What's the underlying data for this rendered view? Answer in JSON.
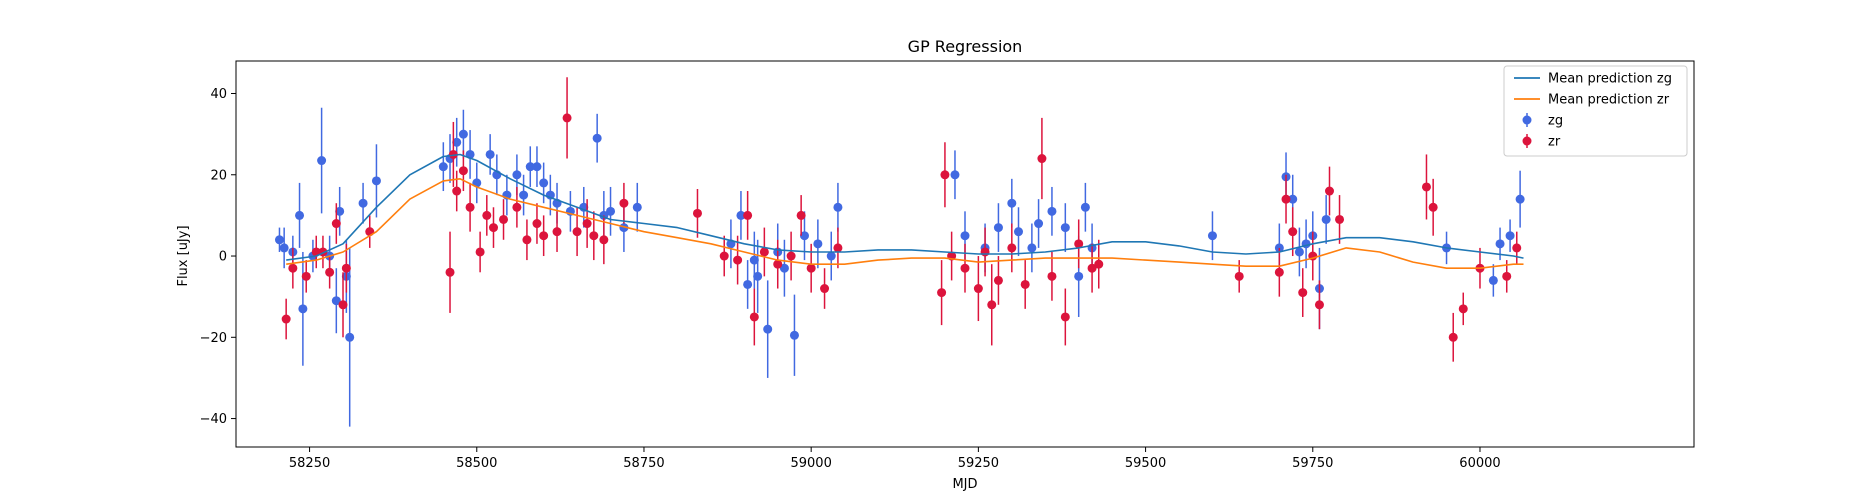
{
  "chart_data": {
    "type": "scatter",
    "title": "GP Regression",
    "xlabel": "MJD",
    "ylabel": "Flux [uJy]",
    "xlim": [
      58140,
      60320
    ],
    "ylim": [
      -47,
      48
    ],
    "xticks": [
      58250,
      58500,
      58750,
      59000,
      59250,
      59500,
      59750,
      60000
    ],
    "yticks": [
      -40,
      -20,
      0,
      20,
      40
    ],
    "legend": {
      "placement": "top-right",
      "entries": [
        "Mean prediction zg",
        "Mean prediction zr",
        "zg",
        "zr"
      ]
    },
    "colors": {
      "line_zg": "#1f77b4",
      "line_zr": "#ff7f0e",
      "points_zg": "#4169e1",
      "points_zr": "#dc143c"
    },
    "series": [
      {
        "name": "Mean prediction zg",
        "kind": "line",
        "x": [
          58215,
          58260,
          58300,
          58350,
          58400,
          58450,
          58475,
          58500,
          58550,
          58600,
          58650,
          58700,
          58750,
          58800,
          58850,
          58900,
          58950,
          59000,
          59050,
          59100,
          59150,
          59200,
          59250,
          59300,
          59350,
          59400,
          59450,
          59500,
          59550,
          59600,
          59650,
          59700,
          59750,
          59800,
          59850,
          59900,
          59950,
          60000,
          60050,
          60065
        ],
        "y": [
          -1,
          0,
          3,
          12,
          20,
          24.5,
          25,
          23.5,
          19,
          15,
          12,
          9,
          8,
          7,
          5,
          3,
          1.5,
          1,
          1,
          1.5,
          1.5,
          1,
          0.5,
          0.5,
          1,
          2,
          3.5,
          3.5,
          2.5,
          1,
          0.5,
          1,
          3,
          4.5,
          4.5,
          3.5,
          2,
          1,
          0,
          -0.5
        ]
      },
      {
        "name": "Mean prediction zr",
        "kind": "line",
        "x": [
          58215,
          58260,
          58300,
          58350,
          58400,
          58450,
          58475,
          58500,
          58550,
          58600,
          58650,
          58700,
          58750,
          58800,
          58850,
          58900,
          58950,
          59000,
          59050,
          59100,
          59150,
          59200,
          59250,
          59300,
          59350,
          59400,
          59450,
          59500,
          59550,
          59600,
          59650,
          59700,
          59750,
          59800,
          59850,
          59900,
          59950,
          60000,
          60050,
          60065
        ],
        "y": [
          -2,
          -1,
          1,
          6,
          14,
          18.5,
          19,
          17,
          14,
          12,
          10,
          8,
          6,
          4.5,
          3,
          1,
          -1,
          -2,
          -2,
          -1,
          -0.5,
          -0.5,
          -1.5,
          -1,
          -0.5,
          -0.5,
          -0.5,
          -1,
          -1.5,
          -2,
          -2.5,
          -2.5,
          -0.5,
          2,
          1,
          -1.5,
          -3,
          -3,
          -2,
          -2
        ]
      },
      {
        "name": "zg",
        "kind": "errorbar",
        "x": [
          58205,
          58212,
          58225,
          58235,
          58240,
          58255,
          58268,
          58280,
          58290,
          58295,
          58305,
          58310,
          58330,
          58350,
          58450,
          58460,
          58470,
          58480,
          58490,
          58500,
          58520,
          58530,
          58545,
          58560,
          58570,
          58580,
          58590,
          58600,
          58610,
          58620,
          58640,
          58660,
          58680,
          58690,
          58700,
          58720,
          58740,
          58880,
          58895,
          58905,
          58915,
          58920,
          58935,
          58950,
          58960,
          58975,
          58990,
          59010,
          59030,
          59040,
          59215,
          59230,
          59260,
          59280,
          59300,
          59310,
          59330,
          59340,
          59360,
          59380,
          59400,
          59410,
          59420,
          59600,
          59700,
          59710,
          59720,
          59730,
          59740,
          59750,
          59760,
          59770,
          59950,
          60020,
          60030,
          60045,
          60060
        ],
        "y": [
          4,
          2,
          1,
          10,
          -13,
          0,
          23.5,
          0,
          -11,
          11,
          -5,
          -20,
          13,
          18.5,
          22,
          24,
          28,
          30,
          25,
          18,
          25,
          20,
          15,
          20,
          15,
          22,
          22,
          18,
          15,
          13,
          11,
          12,
          29,
          10,
          11,
          7,
          12,
          3,
          10,
          -7,
          -1,
          -5,
          -18,
          1,
          -3,
          -19.5,
          5,
          3,
          0,
          12,
          20,
          5,
          2,
          7,
          13,
          6,
          2,
          8,
          11,
          7,
          -5,
          12,
          2,
          5,
          2,
          19.5,
          14,
          1,
          3,
          5,
          -8,
          9,
          2,
          -6,
          3,
          5,
          14
        ],
        "err": [
          3,
          5,
          4,
          8,
          14,
          4,
          13,
          5,
          8,
          6,
          9,
          22,
          5,
          9,
          6,
          6,
          6,
          6,
          6,
          5,
          5,
          5,
          5,
          5,
          5,
          5,
          5,
          5,
          5,
          5,
          5,
          5,
          6,
          6,
          6,
          6,
          6,
          6,
          6,
          6,
          7,
          9,
          12,
          7,
          7,
          10,
          6,
          6,
          6,
          6,
          6,
          6,
          6,
          6,
          6,
          6,
          6,
          6,
          6,
          6,
          10,
          6,
          6,
          6,
          6,
          6,
          6,
          6,
          6,
          6,
          10,
          6,
          4,
          4,
          4,
          4,
          7
        ]
      },
      {
        "name": "zr",
        "kind": "errorbar",
        "x": [
          58215,
          58225,
          58245,
          58260,
          58270,
          58280,
          58290,
          58300,
          58305,
          58340,
          58460,
          58465,
          58470,
          58480,
          58490,
          58505,
          58515,
          58525,
          58540,
          58560,
          58575,
          58590,
          58600,
          58620,
          58635,
          58650,
          58665,
          58675,
          58690,
          58720,
          58830,
          58870,
          58890,
          58905,
          58915,
          58930,
          58950,
          58970,
          58985,
          59000,
          59020,
          59040,
          59195,
          59200,
          59210,
          59230,
          59250,
          59260,
          59270,
          59280,
          59300,
          59320,
          59345,
          59360,
          59380,
          59400,
          59420,
          59430,
          59640,
          59700,
          59710,
          59720,
          59735,
          59750,
          59760,
          59775,
          59790,
          59920,
          59930,
          59960,
          59975,
          60000,
          60040,
          60055
        ],
        "y": [
          -15.5,
          -3,
          -5,
          1,
          1,
          -4,
          8,
          -12,
          -3,
          6,
          -4,
          25,
          16,
          21,
          12,
          1,
          10,
          7,
          9,
          12,
          4,
          8,
          5,
          6,
          34,
          6,
          8,
          5,
          4,
          13,
          10.5,
          0,
          -1,
          10,
          -15,
          1,
          -2,
          0,
          10,
          -3,
          -8,
          2,
          -9,
          20,
          0,
          -3,
          -8,
          1,
          -12,
          -6,
          2,
          -7,
          24,
          -5,
          -15,
          3,
          -3,
          -2,
          -5,
          -4,
          14,
          6,
          -9,
          0,
          -12,
          16,
          9,
          17,
          12,
          -20,
          -13,
          -3,
          -5,
          2
        ],
        "err": [
          5,
          5,
          4,
          4,
          4,
          4,
          5,
          8,
          6,
          4,
          10,
          8,
          5,
          5,
          6,
          5,
          5,
          5,
          5,
          5,
          5,
          5,
          5,
          5,
          10,
          6,
          6,
          6,
          6,
          5,
          6,
          5,
          6,
          6,
          7,
          6,
          6,
          6,
          5,
          6,
          5,
          5,
          8,
          8,
          6,
          6,
          8,
          6,
          10,
          6,
          6,
          6,
          10,
          6,
          7,
          6,
          6,
          6,
          4,
          6,
          6,
          6,
          6,
          6,
          6,
          6,
          6,
          8,
          7,
          6,
          4,
          5,
          4,
          4
        ]
      }
    ]
  }
}
